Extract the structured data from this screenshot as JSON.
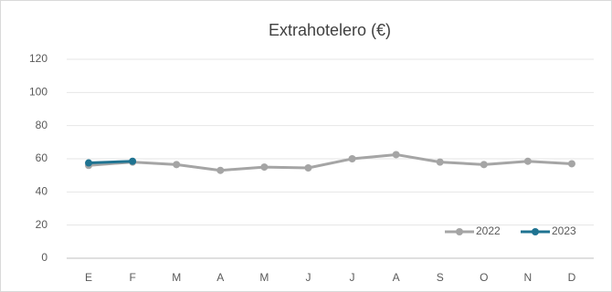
{
  "chart_data": {
    "type": "line",
    "title": "Extrahotelero (€)",
    "categories": [
      "E",
      "F",
      "M",
      "A",
      "M",
      "J",
      "J",
      "A",
      "S",
      "O",
      "N",
      "D"
    ],
    "series": [
      {
        "name": "2022",
        "color": "#a5a5a5",
        "values": [
          56,
          58,
          56.5,
          53,
          55,
          54.5,
          60,
          62.5,
          58,
          56.5,
          58.5,
          57
        ]
      },
      {
        "name": "2023",
        "color": "#1f7391",
        "values": [
          57.5,
          58.5,
          null,
          null,
          null,
          null,
          null,
          null,
          null,
          null,
          null,
          null
        ]
      }
    ],
    "ylim": [
      0,
      120
    ],
    "yticks": [
      0,
      20,
      40,
      60,
      80,
      100,
      120
    ],
    "grid": true,
    "legend": "lower right"
  }
}
